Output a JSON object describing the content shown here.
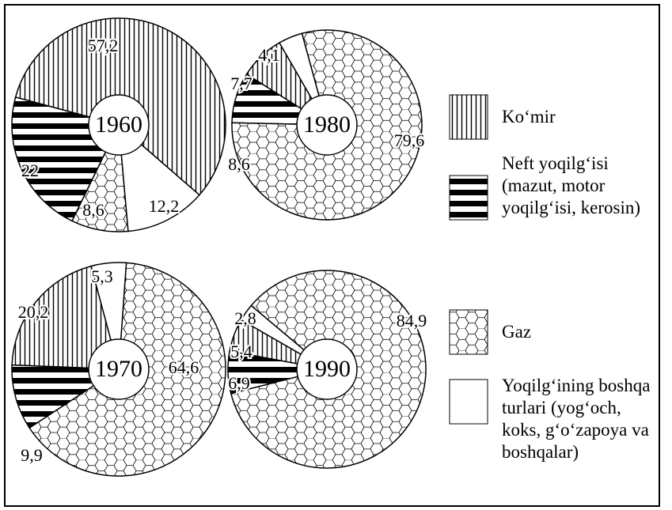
{
  "chart_data": {
    "type": "pie",
    "categories": [
      "Ko‘mir",
      "Neft yoqilg‘isi (mazut, motor yoqilg‘isi, kerosin)",
      "Gaz",
      "Yoqilg‘ining boshqa turlari (yog‘och, koks, g‘o‘zapoya va boshqalar)"
    ],
    "pies": [
      {
        "title": "1960",
        "values": [
          57.2,
          22,
          8.6,
          12.2
        ],
        "value_labels": [
          "57,2",
          "22",
          "8,6",
          "12,2"
        ]
      },
      {
        "title": "1980",
        "values": [
          7.7,
          8.6,
          79.6,
          4.1
        ],
        "value_labels": [
          "7,7",
          "8,6",
          "79,6",
          "4,1"
        ]
      },
      {
        "title": "1970",
        "values": [
          20.2,
          9.9,
          64.6,
          5.3
        ],
        "value_labels": [
          "20,2",
          "9,9",
          "64,6",
          "5,3"
        ]
      },
      {
        "title": "1990",
        "values": [
          5.4,
          6.9,
          84.9,
          2.8
        ],
        "value_labels": [
          "5,4",
          "6,9",
          "84,9",
          "2,8"
        ]
      }
    ]
  }
}
